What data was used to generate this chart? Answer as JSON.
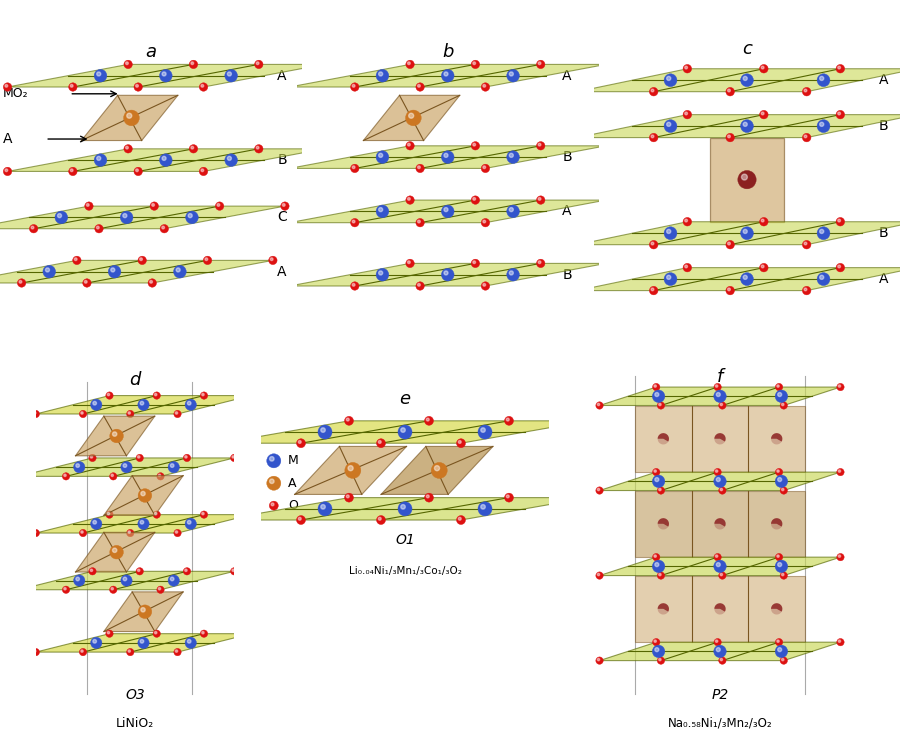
{
  "background_color": "#ffffff",
  "colors": {
    "MO6_face_light": "#c8d855",
    "MO6_face_dark": "#a0b030",
    "MO6_face_yellow": "#d4d840",
    "MO6_edge": "#556600",
    "AO6_face": "#c8a060",
    "AO6_face_dark": "#b08840",
    "AO6_edge": "#7a5520",
    "M_sphere": "#3355cc",
    "A_sphere_orange": "#cc7722",
    "A_sphere_dark": "#8b2020",
    "O_sphere": "#dd1111",
    "cell_line": "#aaaaaa",
    "label_color": "#000000",
    "arrow_color": "#000000"
  },
  "panel_a": {
    "label": "a",
    "layer_labels": [
      "A",
      "B",
      "C",
      "A"
    ],
    "annotation_MO2": "MO₂",
    "annotation_A": "A"
  },
  "panel_b": {
    "label": "b",
    "layer_labels": [
      "A",
      "B",
      "A",
      "B"
    ]
  },
  "panel_c": {
    "label": "c",
    "layer_labels": [
      "A",
      "B",
      "B",
      "A"
    ]
  },
  "panel_d": {
    "label": "d",
    "struct_label": "O3",
    "formula": "LiNiO₂"
  },
  "panel_e": {
    "label": "e",
    "struct_label": "O1",
    "formula": "Li₀.₀₄Ni₁/₃Mn₁/₃Co₁/₃O₂"
  },
  "panel_f": {
    "label": "f",
    "struct_label": "P2",
    "formula": "Na₀.₅₈Ni₁/₃Mn₂/₃O₂"
  },
  "legend": {
    "M_label": "M",
    "A_label": "A",
    "O_label": "O"
  }
}
